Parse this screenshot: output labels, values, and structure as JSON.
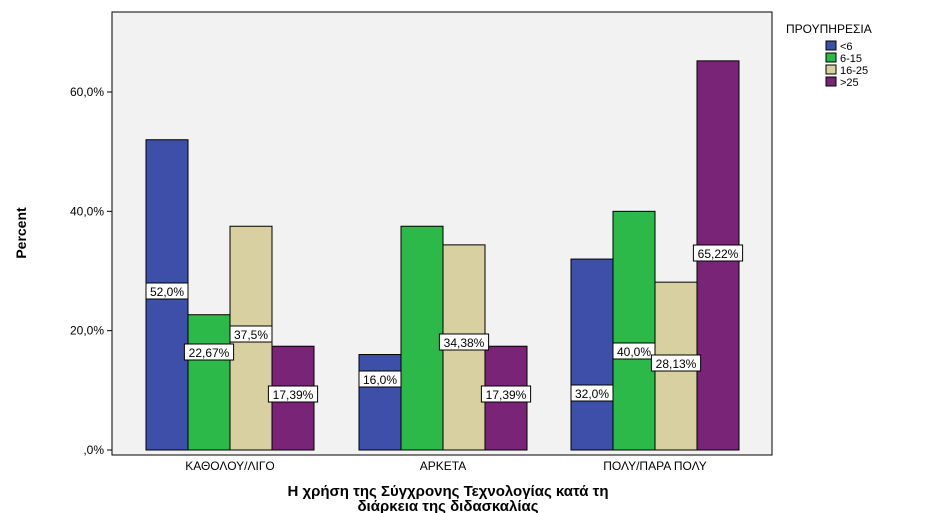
{
  "chart_data": {
    "type": "bar",
    "xlabel": "Η χρήση της Σύγχρονης Τεχνολογίας κατά τη διάρκεια της διδασκαλίας",
    "xlabel_lines": [
      "Η χρήση της Σύγχρονης Τεχνολογίας κατά τη",
      "διάρκεια της διδασκαλίας"
    ],
    "ylabel": "Percent",
    "ylim": [
      0,
      75
    ],
    "yticks": [
      0,
      20,
      40,
      60
    ],
    "ytick_labels": [
      ",0%",
      "20,0%",
      "40,0%",
      "60,0%"
    ],
    "categories": [
      "ΚΑΘΟΛΟΥ/ΛΙΓΟ",
      "ΑΡΚΕΤΑ",
      "ΠΟΛΥ/ΠΑΡΑ ΠΟΛΥ"
    ],
    "legend_title": "ΠΡΟΥΠΗΡΕΣΙΑ",
    "legend_position": "top-right",
    "grid": false,
    "series": [
      {
        "name": "<6",
        "color": "#3d4fa8",
        "values": [
          52.0,
          16.0,
          32.0
        ],
        "labels": [
          "52,0%",
          "16,0%",
          "32,0%"
        ]
      },
      {
        "name": "6-15",
        "color": "#2db84a",
        "values": [
          22.67,
          37.5,
          40.0
        ],
        "labels": [
          "22,67%",
          "",
          "40,0%"
        ]
      },
      {
        "name": "16-25",
        "color": "#d8d0a0",
        "values": [
          37.5,
          34.38,
          28.13
        ],
        "labels": [
          "37,5%",
          "34,38%",
          "28,13%"
        ]
      },
      {
        "name": ">25",
        "color": "#7a2478",
        "values": [
          17.39,
          17.39,
          65.22
        ],
        "labels": [
          "17,39%",
          "17,39%",
          "65,22%"
        ]
      }
    ]
  }
}
